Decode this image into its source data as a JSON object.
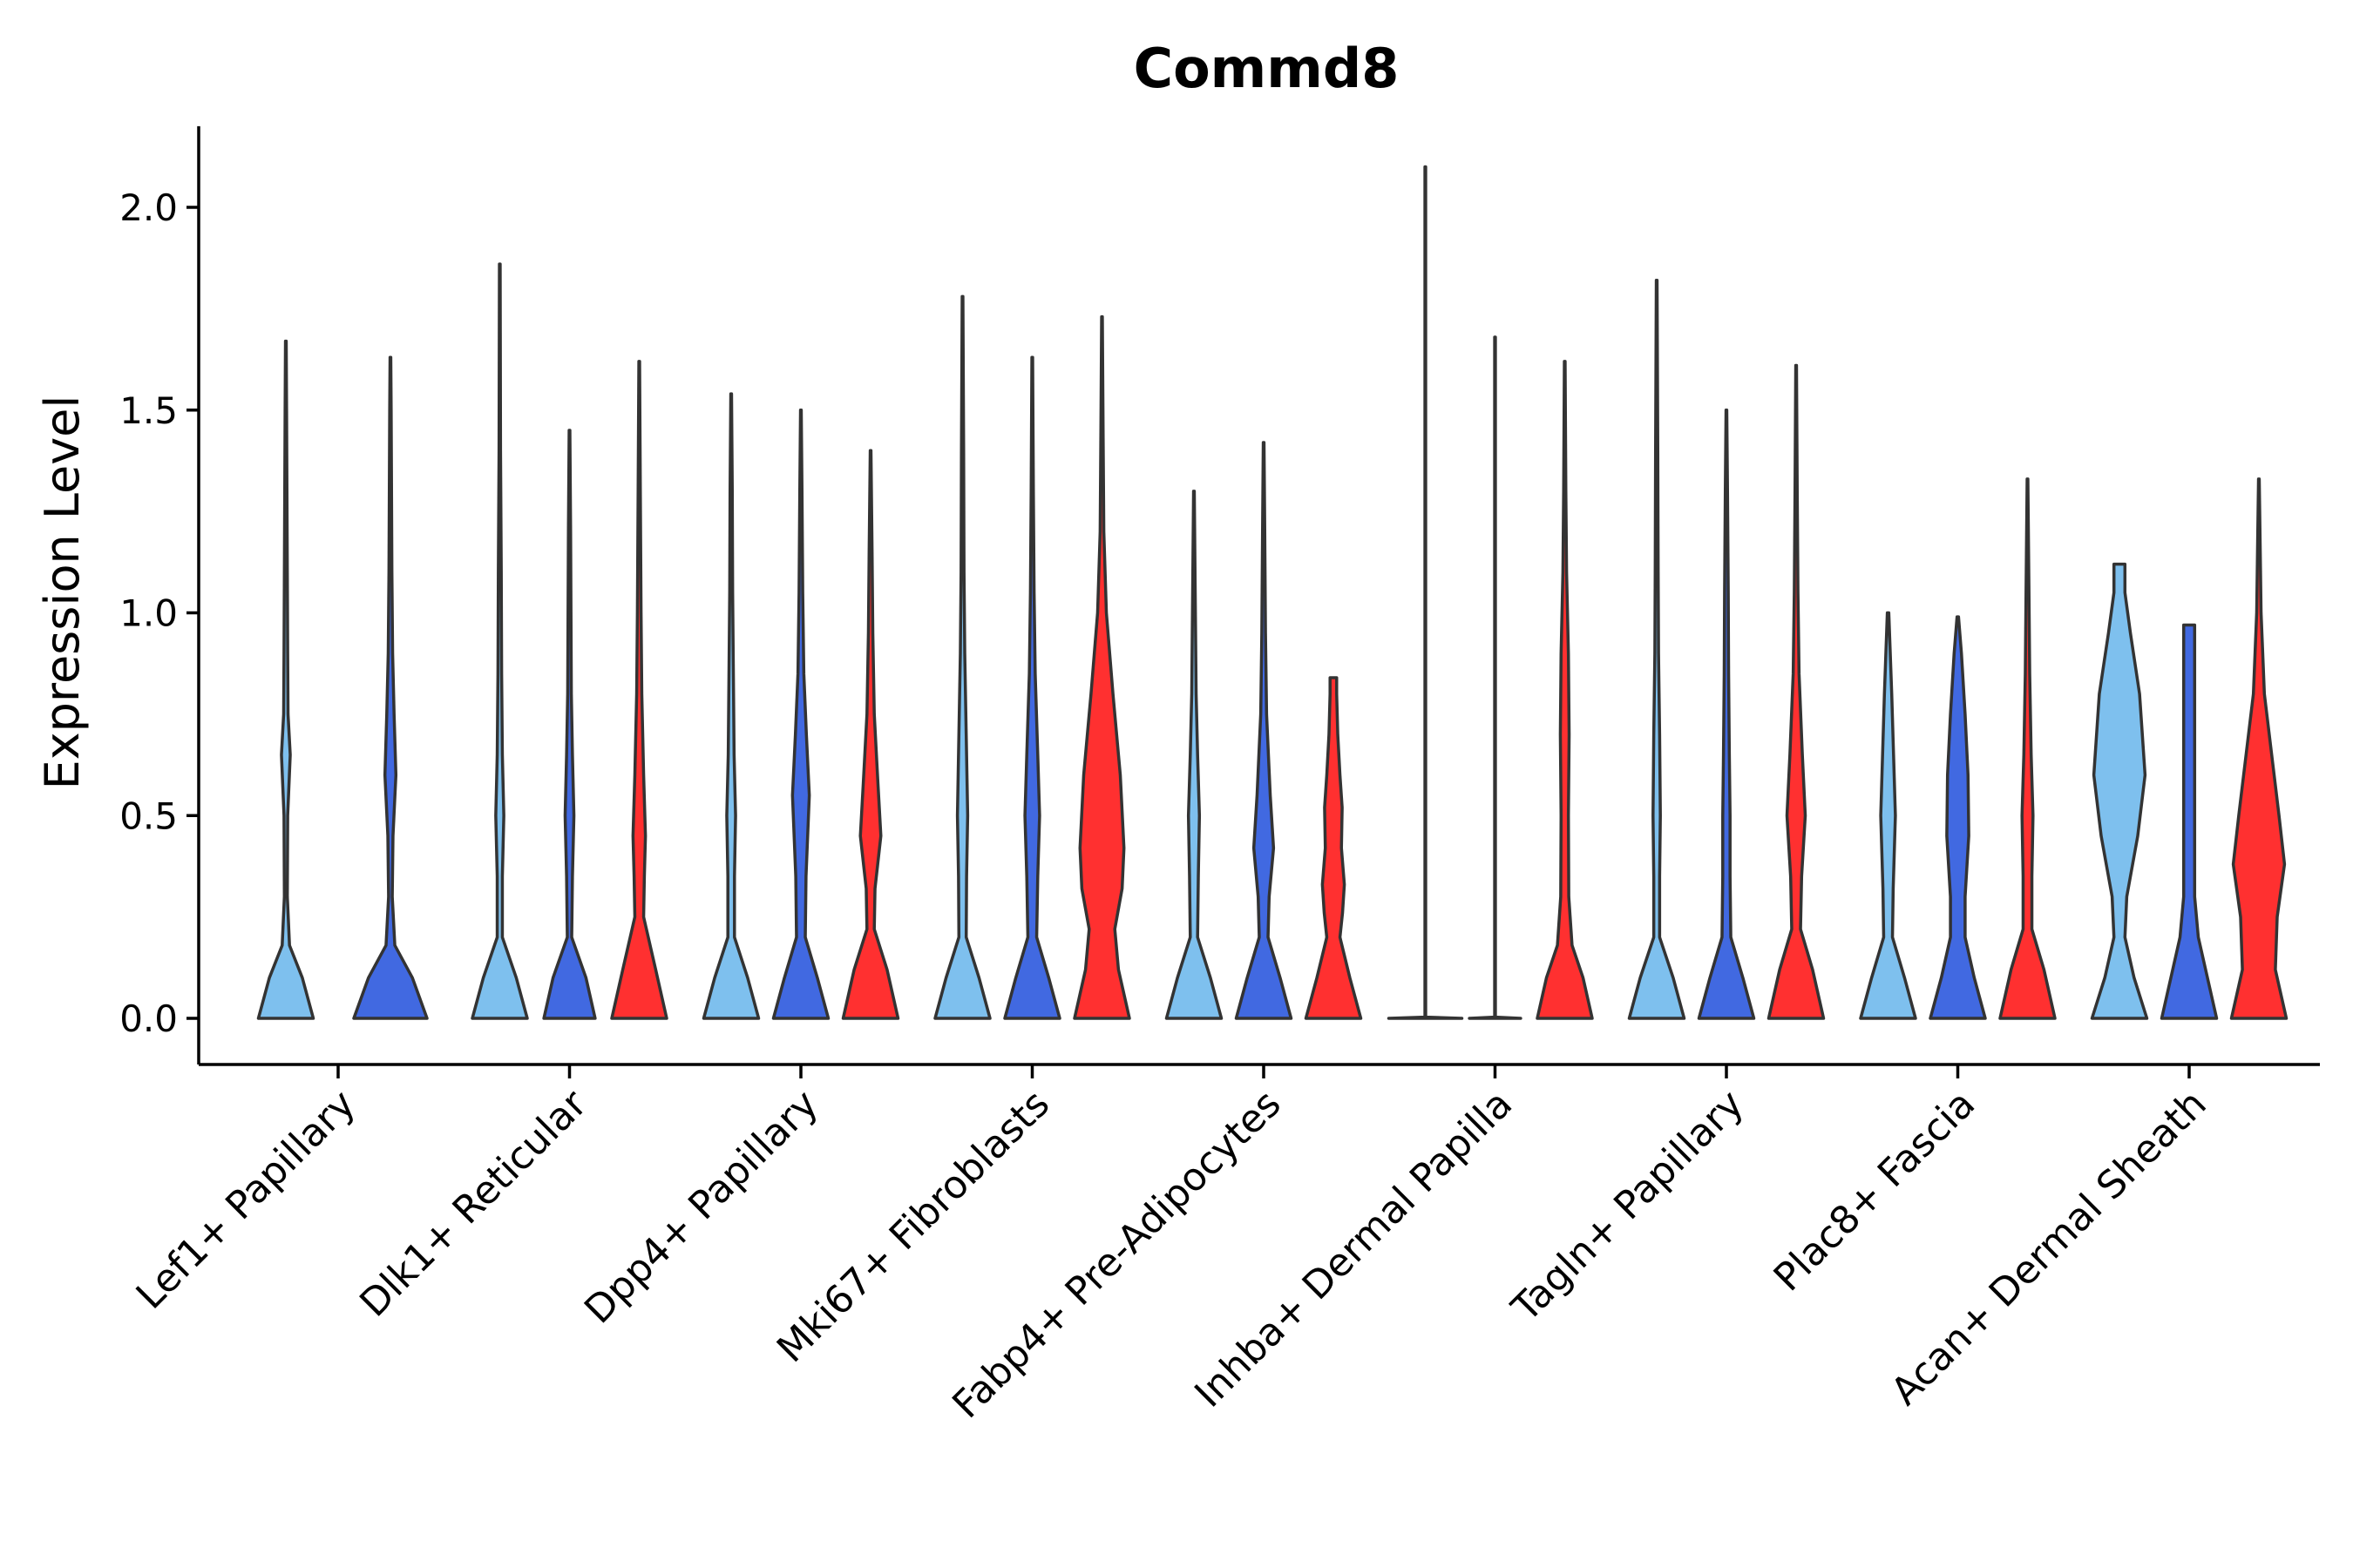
{
  "chart_data": {
    "type": "violin",
    "title": "Commd8",
    "xlabel": "",
    "ylabel": "Expression Level",
    "ylim": [
      -0.11,
      2.2
    ],
    "yticks": [
      "0.0",
      "0.5",
      "1.0",
      "1.5",
      "2.0"
    ],
    "ytick_values": [
      0,
      0.5,
      1.0,
      1.5,
      2.0
    ],
    "series_colors": {
      "condition_1": "#7EC0EE",
      "condition_2": "#4169E1",
      "condition_3": "#FF3030"
    },
    "categories": [
      "Lef1+ Papillary",
      "Dlk1+ Reticular",
      "Dpp4+ Papillary",
      "Mki67+ Fibroblasts",
      "Fabp4+ Pre-Adipocytes",
      "Inhba+ Dermal Papilla",
      "Tagln+ Papillary",
      "Plac8+ Fascia",
      "Acan+ Dermal Sheath"
    ],
    "violins": [
      {
        "category": "Lef1+ Papillary",
        "series": "condition_1",
        "max": 1.67,
        "density": [
          [
            0,
            0.75
          ],
          [
            0.1,
            0.45
          ],
          [
            0.18,
            0.1
          ],
          [
            0.3,
            0.04
          ],
          [
            0.5,
            0.05
          ],
          [
            0.65,
            0.12
          ],
          [
            0.75,
            0.06
          ],
          [
            0.9,
            0.05
          ],
          [
            1.1,
            0.04
          ],
          [
            1.3,
            0.03
          ],
          [
            1.5,
            0.02
          ],
          [
            1.67,
            0.01
          ]
        ]
      },
      {
        "category": "Lef1+ Papillary",
        "series": "condition_2",
        "max": 1.63,
        "density": [
          [
            0,
            1.0
          ],
          [
            0.1,
            0.6
          ],
          [
            0.18,
            0.12
          ],
          [
            0.3,
            0.05
          ],
          [
            0.45,
            0.07
          ],
          [
            0.6,
            0.15
          ],
          [
            0.75,
            0.1
          ],
          [
            0.9,
            0.06
          ],
          [
            1.1,
            0.04
          ],
          [
            1.3,
            0.03
          ],
          [
            1.5,
            0.02
          ],
          [
            1.63,
            0.01
          ]
        ]
      },
      {
        "category": "Dlk1+ Reticular",
        "series": "condition_1",
        "max": 1.86,
        "density": [
          [
            0,
            0.75
          ],
          [
            0.1,
            0.45
          ],
          [
            0.2,
            0.07
          ],
          [
            0.35,
            0.07
          ],
          [
            0.5,
            0.11
          ],
          [
            0.65,
            0.07
          ],
          [
            0.85,
            0.05
          ],
          [
            1.1,
            0.04
          ],
          [
            1.4,
            0.02
          ],
          [
            1.86,
            0.01
          ]
        ]
      },
      {
        "category": "Dlk1+ Reticular",
        "series": "condition_2",
        "max": 1.45,
        "density": [
          [
            0,
            0.7
          ],
          [
            0.1,
            0.45
          ],
          [
            0.2,
            0.06
          ],
          [
            0.35,
            0.08
          ],
          [
            0.5,
            0.12
          ],
          [
            0.65,
            0.08
          ],
          [
            0.8,
            0.05
          ],
          [
            1.0,
            0.04
          ],
          [
            1.2,
            0.03
          ],
          [
            1.45,
            0.01
          ]
        ]
      },
      {
        "category": "Dlk1+ Reticular",
        "series": "condition_3",
        "max": 1.62,
        "density": [
          [
            0,
            0.75
          ],
          [
            0.12,
            0.45
          ],
          [
            0.25,
            0.12
          ],
          [
            0.35,
            0.14
          ],
          [
            0.45,
            0.17
          ],
          [
            0.6,
            0.12
          ],
          [
            0.8,
            0.07
          ],
          [
            1.0,
            0.05
          ],
          [
            1.3,
            0.03
          ],
          [
            1.62,
            0.01
          ]
        ]
      },
      {
        "category": "Dpp4+ Papillary",
        "series": "condition_1",
        "max": 1.54,
        "density": [
          [
            0,
            0.75
          ],
          [
            0.1,
            0.45
          ],
          [
            0.2,
            0.09
          ],
          [
            0.35,
            0.09
          ],
          [
            0.5,
            0.12
          ],
          [
            0.65,
            0.08
          ],
          [
            0.85,
            0.06
          ],
          [
            1.05,
            0.04
          ],
          [
            1.3,
            0.03
          ],
          [
            1.54,
            0.01
          ]
        ]
      },
      {
        "category": "Dpp4+ Papillary",
        "series": "condition_2",
        "max": 1.5,
        "density": [
          [
            0,
            0.75
          ],
          [
            0.1,
            0.45
          ],
          [
            0.2,
            0.12
          ],
          [
            0.35,
            0.14
          ],
          [
            0.55,
            0.23
          ],
          [
            0.7,
            0.15
          ],
          [
            0.85,
            0.08
          ],
          [
            1.05,
            0.05
          ],
          [
            1.3,
            0.03
          ],
          [
            1.5,
            0.01
          ]
        ]
      },
      {
        "category": "Dpp4+ Papillary",
        "series": "condition_3",
        "max": 1.4,
        "density": [
          [
            0,
            0.75
          ],
          [
            0.12,
            0.45
          ],
          [
            0.22,
            0.1
          ],
          [
            0.32,
            0.12
          ],
          [
            0.45,
            0.28
          ],
          [
            0.58,
            0.2
          ],
          [
            0.75,
            0.1
          ],
          [
            0.95,
            0.06
          ],
          [
            1.15,
            0.04
          ],
          [
            1.4,
            0.01
          ]
        ]
      },
      {
        "category": "Mki67+ Fibroblasts",
        "series": "condition_1",
        "max": 1.78,
        "density": [
          [
            0,
            0.75
          ],
          [
            0.1,
            0.45
          ],
          [
            0.2,
            0.1
          ],
          [
            0.35,
            0.11
          ],
          [
            0.5,
            0.14
          ],
          [
            0.7,
            0.1
          ],
          [
            0.9,
            0.06
          ],
          [
            1.1,
            0.04
          ],
          [
            1.4,
            0.03
          ],
          [
            1.78,
            0.01
          ]
        ]
      },
      {
        "category": "Mki67+ Fibroblasts",
        "series": "condition_2",
        "max": 1.63,
        "density": [
          [
            0,
            0.75
          ],
          [
            0.1,
            0.45
          ],
          [
            0.2,
            0.12
          ],
          [
            0.35,
            0.15
          ],
          [
            0.5,
            0.2
          ],
          [
            0.65,
            0.15
          ],
          [
            0.85,
            0.08
          ],
          [
            1.05,
            0.05
          ],
          [
            1.3,
            0.03
          ],
          [
            1.63,
            0.01
          ]
        ]
      },
      {
        "category": "Mki67+ Fibroblasts",
        "series": "condition_3",
        "max": 1.73,
        "density": [
          [
            0,
            0.75
          ],
          [
            0.12,
            0.45
          ],
          [
            0.22,
            0.35
          ],
          [
            0.32,
            0.55
          ],
          [
            0.42,
            0.6
          ],
          [
            0.6,
            0.5
          ],
          [
            0.8,
            0.3
          ],
          [
            1.0,
            0.12
          ],
          [
            1.2,
            0.05
          ],
          [
            1.45,
            0.03
          ],
          [
            1.73,
            0.01
          ]
        ]
      },
      {
        "category": "Fabp4+ Pre-Adipocytes",
        "series": "condition_1",
        "max": 1.3,
        "density": [
          [
            0,
            0.75
          ],
          [
            0.1,
            0.45
          ],
          [
            0.2,
            0.1
          ],
          [
            0.35,
            0.12
          ],
          [
            0.5,
            0.15
          ],
          [
            0.65,
            0.1
          ],
          [
            0.8,
            0.06
          ],
          [
            1.0,
            0.04
          ],
          [
            1.3,
            0.01
          ]
        ]
      },
      {
        "category": "Fabp4+ Pre-Adipocytes",
        "series": "condition_2",
        "max": 1.42,
        "density": [
          [
            0,
            0.75
          ],
          [
            0.1,
            0.45
          ],
          [
            0.2,
            0.12
          ],
          [
            0.3,
            0.15
          ],
          [
            0.42,
            0.27
          ],
          [
            0.55,
            0.18
          ],
          [
            0.75,
            0.08
          ],
          [
            0.95,
            0.05
          ],
          [
            1.2,
            0.03
          ],
          [
            1.42,
            0.01
          ]
        ]
      },
      {
        "category": "Fabp4+ Pre-Adipocytes",
        "series": "condition_3",
        "max": 0.84,
        "density": [
          [
            0,
            0.75
          ],
          [
            0.1,
            0.45
          ],
          [
            0.2,
            0.18
          ],
          [
            0.26,
            0.25
          ],
          [
            0.33,
            0.3
          ],
          [
            0.42,
            0.22
          ],
          [
            0.52,
            0.24
          ],
          [
            0.6,
            0.18
          ],
          [
            0.7,
            0.12
          ],
          [
            0.8,
            0.09
          ],
          [
            0.84,
            0.09
          ]
        ]
      },
      {
        "category": "Inhba+ Dermal Papilla",
        "series": "condition_1",
        "max": 2.1,
        "density": [
          [
            0,
            1.0
          ],
          [
            0.003,
            0.01
          ],
          [
            2.1,
            0.01
          ]
        ]
      },
      {
        "category": "Inhba+ Dermal Papilla",
        "series": "condition_2",
        "max": 1.68,
        "density": [
          [
            0,
            0.7
          ],
          [
            0.003,
            0.01
          ],
          [
            1.68,
            0.01
          ]
        ]
      },
      {
        "category": "Inhba+ Dermal Papilla",
        "series": "condition_3",
        "max": 1.62,
        "density": [
          [
            0,
            0.75
          ],
          [
            0.1,
            0.5
          ],
          [
            0.18,
            0.2
          ],
          [
            0.3,
            0.11
          ],
          [
            0.5,
            0.1
          ],
          [
            0.7,
            0.12
          ],
          [
            0.9,
            0.1
          ],
          [
            1.1,
            0.05
          ],
          [
            1.3,
            0.03
          ],
          [
            1.62,
            0.01
          ]
        ]
      },
      {
        "category": "Tagln+ Papillary",
        "series": "condition_1",
        "max": 1.82,
        "density": [
          [
            0,
            0.75
          ],
          [
            0.1,
            0.45
          ],
          [
            0.2,
            0.08
          ],
          [
            0.35,
            0.08
          ],
          [
            0.5,
            0.1
          ],
          [
            0.7,
            0.08
          ],
          [
            0.9,
            0.05
          ],
          [
            1.1,
            0.04
          ],
          [
            1.4,
            0.03
          ],
          [
            1.82,
            0.01
          ]
        ]
      },
      {
        "category": "Tagln+ Papillary",
        "series": "condition_2",
        "max": 1.5,
        "density": [
          [
            0,
            0.75
          ],
          [
            0.1,
            0.45
          ],
          [
            0.2,
            0.12
          ],
          [
            0.35,
            0.1
          ],
          [
            0.5,
            0.1
          ],
          [
            0.65,
            0.08
          ],
          [
            0.85,
            0.06
          ],
          [
            1.05,
            0.05
          ],
          [
            1.3,
            0.03
          ],
          [
            1.5,
            0.01
          ]
        ]
      },
      {
        "category": "Tagln+ Papillary",
        "series": "condition_3",
        "max": 1.61,
        "density": [
          [
            0,
            0.75
          ],
          [
            0.12,
            0.45
          ],
          [
            0.22,
            0.12
          ],
          [
            0.35,
            0.15
          ],
          [
            0.5,
            0.25
          ],
          [
            0.65,
            0.17
          ],
          [
            0.85,
            0.08
          ],
          [
            1.05,
            0.05
          ],
          [
            1.3,
            0.03
          ],
          [
            1.61,
            0.01
          ]
        ]
      },
      {
        "category": "Plac8+ Fascia",
        "series": "condition_1",
        "max": 1.0,
        "density": [
          [
            0,
            0.75
          ],
          [
            0.1,
            0.45
          ],
          [
            0.2,
            0.12
          ],
          [
            0.32,
            0.14
          ],
          [
            0.5,
            0.2
          ],
          [
            0.65,
            0.15
          ],
          [
            0.8,
            0.1
          ],
          [
            1.0,
            0.02
          ]
        ]
      },
      {
        "category": "Plac8+ Fascia",
        "series": "condition_2",
        "max": 0.99,
        "density": [
          [
            0,
            0.75
          ],
          [
            0.1,
            0.45
          ],
          [
            0.2,
            0.2
          ],
          [
            0.3,
            0.2
          ],
          [
            0.45,
            0.3
          ],
          [
            0.6,
            0.28
          ],
          [
            0.75,
            0.2
          ],
          [
            0.9,
            0.1
          ],
          [
            0.99,
            0.02
          ]
        ]
      },
      {
        "category": "Plac8+ Fascia",
        "series": "condition_3",
        "max": 1.33,
        "density": [
          [
            0,
            0.75
          ],
          [
            0.12,
            0.45
          ],
          [
            0.22,
            0.12
          ],
          [
            0.35,
            0.12
          ],
          [
            0.5,
            0.15
          ],
          [
            0.65,
            0.1
          ],
          [
            0.85,
            0.06
          ],
          [
            1.05,
            0.04
          ],
          [
            1.33,
            0.01
          ]
        ]
      },
      {
        "category": "Acan+ Dermal Sheath",
        "series": "condition_1",
        "max": 1.12,
        "density": [
          [
            0,
            0.75
          ],
          [
            0.1,
            0.4
          ],
          [
            0.2,
            0.15
          ],
          [
            0.3,
            0.2
          ],
          [
            0.45,
            0.5
          ],
          [
            0.6,
            0.7
          ],
          [
            0.8,
            0.55
          ],
          [
            0.95,
            0.3
          ],
          [
            1.05,
            0.15
          ],
          [
            1.12,
            0.15
          ]
        ]
      },
      {
        "category": "Acan+ Dermal Sheath",
        "series": "condition_2",
        "max": 0.97,
        "density": [
          [
            0,
            0.75
          ],
          [
            0.1,
            0.5
          ],
          [
            0.2,
            0.25
          ],
          [
            0.3,
            0.15
          ],
          [
            0.45,
            0.15
          ],
          [
            0.6,
            0.15
          ],
          [
            0.75,
            0.15
          ],
          [
            0.9,
            0.15
          ],
          [
            0.97,
            0.15
          ]
        ]
      },
      {
        "category": "Acan+ Dermal Sheath",
        "series": "condition_3",
        "max": 1.33,
        "density": [
          [
            0,
            0.75
          ],
          [
            0.12,
            0.45
          ],
          [
            0.25,
            0.5
          ],
          [
            0.38,
            0.7
          ],
          [
            0.5,
            0.55
          ],
          [
            0.65,
            0.35
          ],
          [
            0.8,
            0.15
          ],
          [
            1.0,
            0.06
          ],
          [
            1.2,
            0.03
          ],
          [
            1.33,
            0.01
          ]
        ]
      }
    ]
  }
}
